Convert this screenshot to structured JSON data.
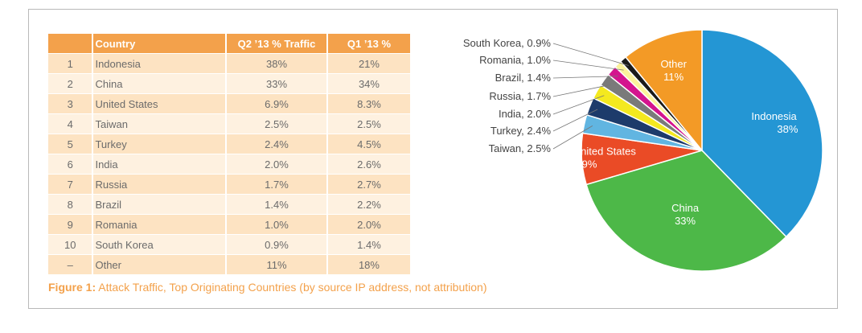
{
  "table": {
    "headers": [
      "",
      "Country",
      "Q2 ’13 % Traffic",
      "Q1 ’13 %"
    ],
    "rows": [
      {
        "rank": "1",
        "country": "Indonesia",
        "q2": "38%",
        "q1": "21%"
      },
      {
        "rank": "2",
        "country": "China",
        "q2": "33%",
        "q1": "34%"
      },
      {
        "rank": "3",
        "country": "United States",
        "q2": "6.9%",
        "q1": "8.3%"
      },
      {
        "rank": "4",
        "country": "Taiwan",
        "q2": "2.5%",
        "q1": "2.5%"
      },
      {
        "rank": "5",
        "country": "Turkey",
        "q2": "2.4%",
        "q1": "4.5%"
      },
      {
        "rank": "6",
        "country": "India",
        "q2": "2.0%",
        "q1": "2.6%"
      },
      {
        "rank": "7",
        "country": "Russia",
        "q2": "1.7%",
        "q1": "2.7%"
      },
      {
        "rank": "8",
        "country": "Brazil",
        "q2": "1.4%",
        "q1": "2.2%"
      },
      {
        "rank": "9",
        "country": "Romania",
        "q2": "1.0%",
        "q1": "2.0%"
      },
      {
        "rank": "10",
        "country": "South Korea",
        "q2": "0.9%",
        "q1": "1.4%"
      },
      {
        "rank": "–",
        "country": "Other",
        "q2": "11%",
        "q1": "18%"
      }
    ]
  },
  "caption": {
    "label": "Figure 1:",
    "text": " Attack Traffic, Top Originating Countries (by source IP address, not attribution)"
  },
  "colors": {
    "header": "#f3a14b",
    "row_odd": "#fde3c2",
    "row_even": "#fef1e0",
    "caption": "#f3a14b"
  },
  "chart_data": {
    "type": "pie",
    "slices": [
      {
        "label": "Indonesia",
        "value": 38,
        "display": "38%",
        "color": "#2496d4",
        "label_position": "inside"
      },
      {
        "label": "China",
        "value": 33,
        "display": "33%",
        "color": "#4db848",
        "label_position": "inside"
      },
      {
        "label": "United States",
        "value": 6.9,
        "display": "6.9%",
        "color": "#ea4b26",
        "label_position": "inside"
      },
      {
        "label": "Taiwan",
        "value": 2.5,
        "display": "Taiwan, 2.5%",
        "color": "#61b5e1",
        "label_position": "outside"
      },
      {
        "label": "Turkey",
        "value": 2.4,
        "display": "Turkey, 2.4%",
        "color": "#1d3b6b",
        "label_position": "outside"
      },
      {
        "label": "India",
        "value": 2.0,
        "display": "India, 2.0%",
        "color": "#f4e91f",
        "label_position": "outside"
      },
      {
        "label": "Russia",
        "value": 1.7,
        "display": "Russia, 1.7%",
        "color": "#7a7a7a",
        "label_position": "outside"
      },
      {
        "label": "Brazil",
        "value": 1.4,
        "display": "Brazil, 1.4%",
        "color": "#d4148e",
        "label_position": "outside"
      },
      {
        "label": "Romania",
        "value": 1.0,
        "display": "Romania, 1.0%",
        "color": "#fbf39b",
        "label_position": "outside"
      },
      {
        "label": "South Korea",
        "value": 0.9,
        "display": "South Korea, 0.9%",
        "color": "#1a1a1a",
        "label_position": "outside"
      },
      {
        "label": "Other",
        "value": 11,
        "display": "11%",
        "color": "#f39a26",
        "label_position": "inside"
      }
    ],
    "start_angle": "12 o'clock",
    "direction": "clockwise"
  }
}
